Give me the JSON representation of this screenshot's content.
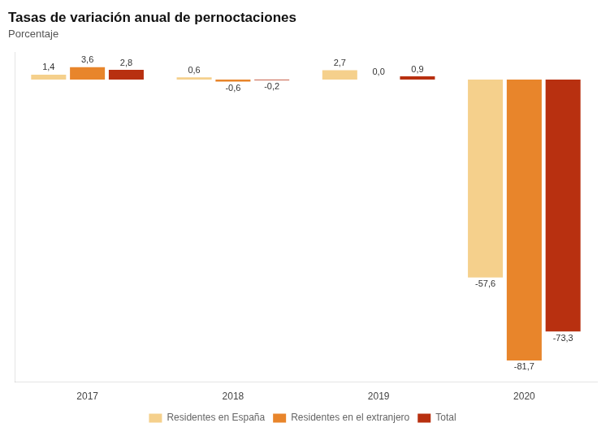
{
  "chart_data": {
    "type": "bar",
    "title": "Tasas de variación anual de pernoctaciones",
    "subtitle": "Porcentaje",
    "categories": [
      "2017",
      "2018",
      "2019",
      "2020"
    ],
    "series": [
      {
        "name": "Residentes en España",
        "color": "#F5D08C",
        "values": [
          1.4,
          0.6,
          2.7,
          -57.6
        ],
        "value_labels": [
          "1,4",
          "0,6",
          "2,7",
          "-57,6"
        ]
      },
      {
        "name": "Residentes en el extranjero",
        "color": "#E8852B",
        "values": [
          3.6,
          -0.6,
          0.0,
          -81.7
        ],
        "value_labels": [
          "3,6",
          "-0,6",
          "0,0",
          "-81,7"
        ]
      },
      {
        "name": "Total",
        "color": "#B83010",
        "values": [
          2.8,
          -0.2,
          0.9,
          -73.3
        ],
        "value_labels": [
          "2,8",
          "-0,2",
          "0,9",
          "-73,3"
        ]
      }
    ],
    "ylim": [
      -88,
      8
    ],
    "grid": false,
    "legend": "bottom",
    "data_labels": true,
    "tick_labels": "x"
  }
}
